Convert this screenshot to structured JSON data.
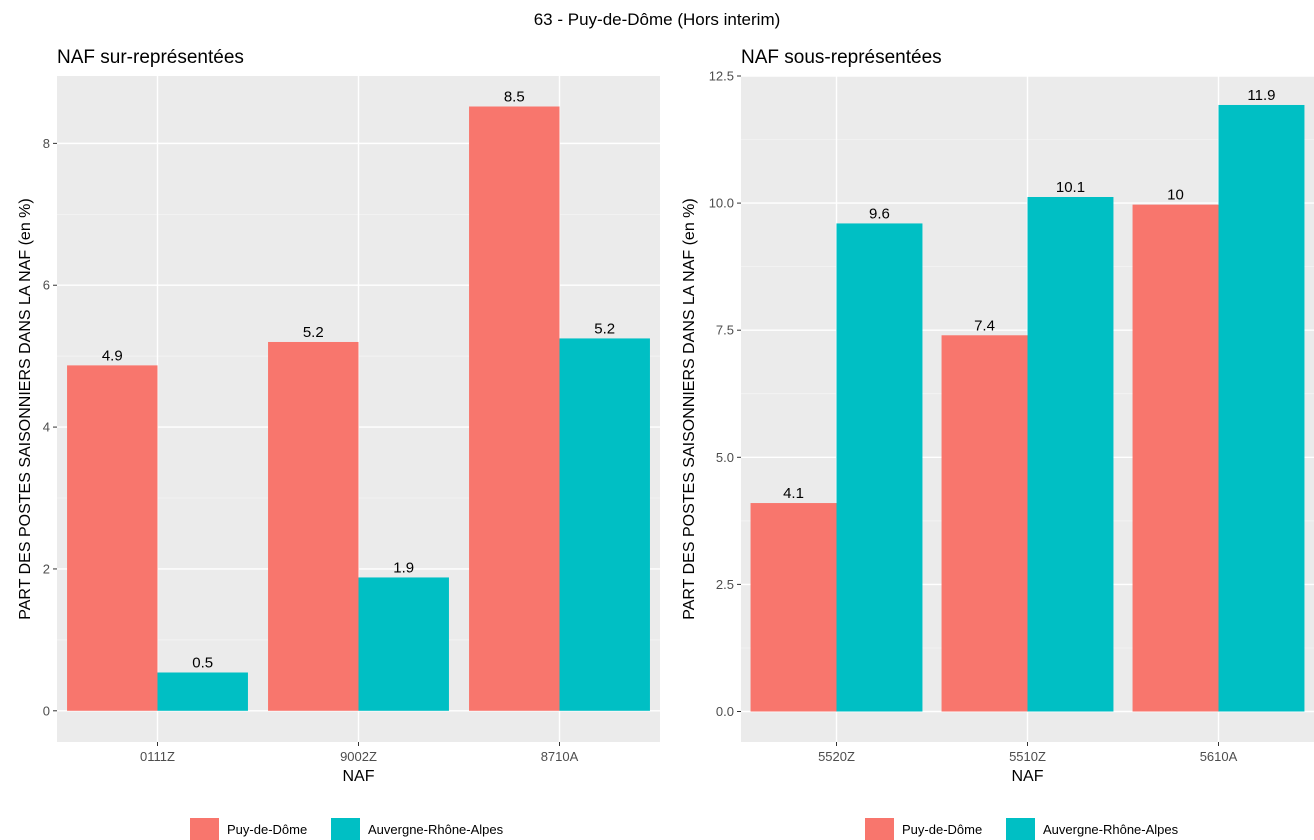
{
  "figure_title": "63 - Puy-de-Dôme (Hors interim)",
  "legend": {
    "items": [
      {
        "label": "Puy-de-Dôme",
        "color": "#F8766D"
      },
      {
        "label": "Auvergne-Rhône-Alpes",
        "color": "#00BFC4"
      }
    ]
  },
  "chart_data": [
    {
      "type": "bar",
      "title": "NAF sur-représentées",
      "xlabel": "NAF",
      "ylabel": "PART DES POSTES SAISONNIERS DANS LA NAF (en %)",
      "categories": [
        "0111Z",
        "9002Z",
        "8710A"
      ],
      "series": [
        {
          "name": "Puy-de-Dôme",
          "values": [
            4.87,
            5.2,
            8.52
          ],
          "labels": [
            "4.9",
            "5.2",
            "8.5"
          ],
          "color": "#F8766D"
        },
        {
          "name": "Auvergne-Rhône-Alpes",
          "values": [
            0.54,
            1.88,
            5.25
          ],
          "labels": [
            "0.5",
            "1.9",
            "5.2"
          ],
          "color": "#00BFC4"
        }
      ],
      "ylim": [
        -0.44,
        8.95
      ],
      "yticks": [
        0,
        2,
        4,
        6,
        8
      ],
      "ytick_labels": [
        "0",
        "2",
        "4",
        "6",
        "8"
      ],
      "grid": true,
      "legend_position": "bottom"
    },
    {
      "type": "bar",
      "title": "NAF sous-représentées",
      "xlabel": "NAF",
      "ylabel": "PART DES POSTES SAISONNIERS DANS LA NAF (en %)",
      "categories": [
        "5520Z",
        "5510Z",
        "5610A"
      ],
      "series": [
        {
          "name": "Puy-de-Dôme",
          "values": [
            4.1,
            7.4,
            9.97
          ],
          "labels": [
            "4.1",
            "7.4",
            "10"
          ],
          "color": "#F8766D"
        },
        {
          "name": "Auvergne-Rhône-Alpes",
          "values": [
            9.6,
            10.12,
            11.93
          ],
          "labels": [
            "9.6",
            "10.1",
            "11.9"
          ],
          "color": "#00BFC4"
        }
      ],
      "ylim": [
        -0.6,
        12.5
      ],
      "yticks": [
        0,
        2.5,
        5,
        7.5,
        10,
        12.5
      ],
      "ytick_labels": [
        "0.0",
        "2.5",
        "5.0",
        "7.5",
        "10.0",
        "12.5"
      ],
      "grid": true,
      "legend_position": "bottom"
    }
  ]
}
